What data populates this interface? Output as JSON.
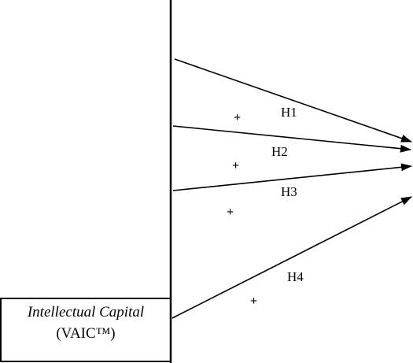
{
  "source_box": {
    "title": "Intellectual Capital",
    "subtitle": "(VAIC™)"
  },
  "hypotheses": [
    {
      "label": "H1",
      "sign": "+"
    },
    {
      "label": "H2",
      "sign": "+"
    },
    {
      "label": "H3",
      "sign": "+"
    },
    {
      "label": "H4",
      "sign": "+"
    }
  ],
  "colors": {
    "stroke": "#000000",
    "background": "#ffffff"
  }
}
